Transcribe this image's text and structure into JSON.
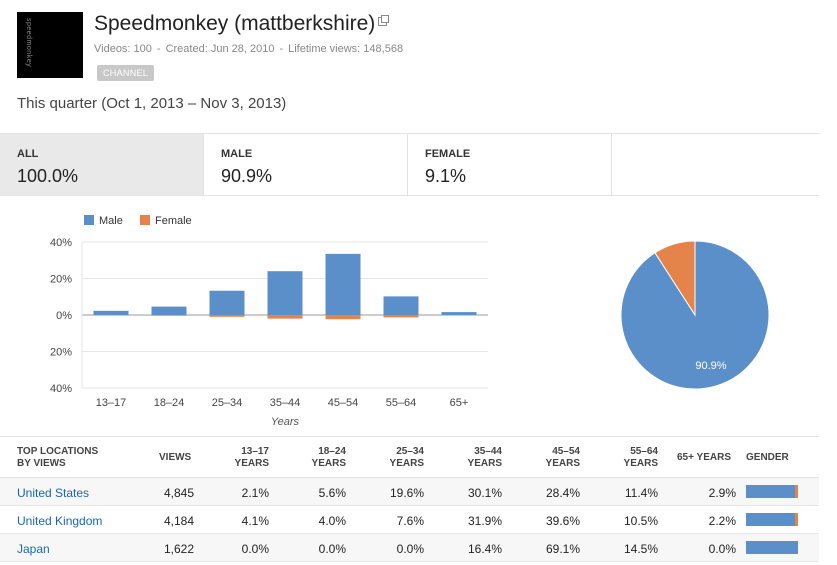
{
  "channel": {
    "avatar_text": "speedmonkey",
    "title": "Speedmonkey (mattberkshire)",
    "videos": "Videos: 100",
    "created": "Created: Jun 28, 2010",
    "lifetime_views": "Lifetime views: 148,568",
    "badge": "CHANNEL"
  },
  "period": "This quarter (Oct 1, 2013 – Nov 3, 2013)",
  "summary": [
    {
      "label": "ALL",
      "value": "100.0%"
    },
    {
      "label": "MALE",
      "value": "90.9%"
    },
    {
      "label": "FEMALE",
      "value": "9.1%"
    }
  ],
  "chart_data": [
    {
      "type": "bar",
      "categories": [
        "13–17",
        "18–24",
        "25–34",
        "35–44",
        "45–54",
        "55–64",
        "65+"
      ],
      "series": [
        {
          "name": "Male",
          "values": [
            2.3,
            4.6,
            13.3,
            24.0,
            33.5,
            10.2,
            1.6
          ],
          "color": "#5b8fc9"
        },
        {
          "name": "Female",
          "values": [
            0.3,
            0.4,
            1.0,
            2.0,
            2.3,
            1.3,
            0.1
          ],
          "color": "#e5844a"
        }
      ],
      "y_ticks": [
        "40%",
        "20%",
        "0%",
        "20%",
        "40%"
      ],
      "ylim": [
        -40,
        40
      ],
      "xlabel": "Years",
      "ylabel": "",
      "legend": "top-left",
      "grid": true
    },
    {
      "type": "pie",
      "slices": [
        {
          "name": "Male",
          "value": 90.9,
          "color": "#5b8fc9"
        },
        {
          "name": "Female",
          "value": 9.1,
          "color": "#e5844a"
        }
      ],
      "slice_label": "90.9%"
    }
  ],
  "table": {
    "headers": {
      "location": [
        "TOP LOCATIONS",
        "BY VIEWS"
      ],
      "views": "VIEWS",
      "a1317": [
        "13–17",
        "YEARS"
      ],
      "a1824": [
        "18–24",
        "YEARS"
      ],
      "a2534": [
        "25–34",
        "YEARS"
      ],
      "a3544": [
        "35–44",
        "YEARS"
      ],
      "a4554": [
        "45–54",
        "YEARS"
      ],
      "a5564": [
        "55–64",
        "YEARS"
      ],
      "a65": "65+ YEARS",
      "gender": "GENDER"
    },
    "rows": [
      {
        "country": "United States",
        "views": "4,845",
        "vals": [
          "2.1%",
          "5.6%",
          "19.6%",
          "30.1%",
          "28.4%",
          "11.4%",
          "2.9%"
        ],
        "female_share": 0.06
      },
      {
        "country": "United Kingdom",
        "views": "4,184",
        "vals": [
          "4.1%",
          "4.0%",
          "7.6%",
          "31.9%",
          "39.6%",
          "10.5%",
          "2.2%"
        ],
        "female_share": 0.06
      },
      {
        "country": "Japan",
        "views": "1,622",
        "vals": [
          "0.0%",
          "0.0%",
          "0.0%",
          "16.4%",
          "69.1%",
          "14.5%",
          "0.0%"
        ],
        "female_share": 0.0
      }
    ]
  }
}
